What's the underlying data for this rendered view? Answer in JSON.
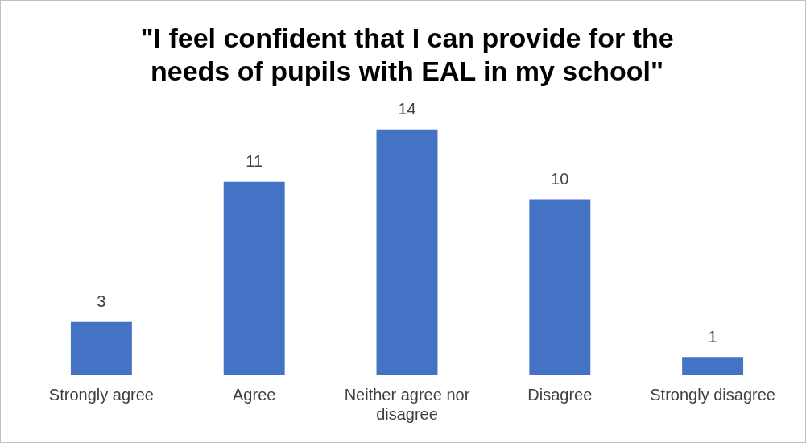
{
  "chart_data": {
    "type": "bar",
    "title": "\"I feel confident that I can provide for the needs of pupils with EAL in my school\"",
    "categories": [
      "Strongly agree",
      "Agree",
      "Neither agree nor disagree",
      "Disagree",
      "Strongly disagree"
    ],
    "values": [
      3,
      11,
      14,
      10,
      1
    ],
    "color": "#4472c4",
    "data_labels": true,
    "grid": false,
    "legend": false
  }
}
